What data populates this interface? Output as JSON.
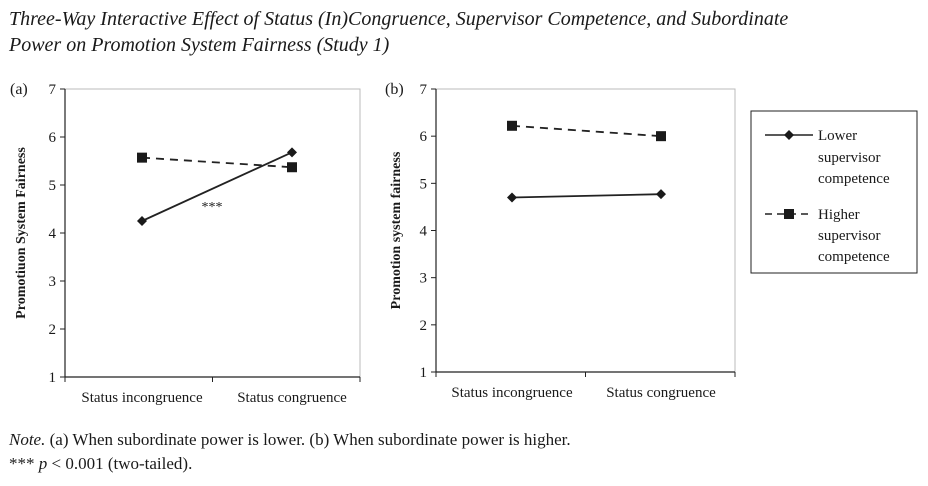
{
  "figure": {
    "title_line1": "Three-Way Interactive Effect of Status (In)Congruence, Supervisor Competence, and Subordinate",
    "title_line2": "Power on Promotion System Fairness (Study 1)",
    "note_label": "Note.",
    "note_text": " (a) When subordinate power is lower. (b) When subordinate power is higher.",
    "sig_stars": "***",
    "sig_p": "p",
    "sig_text": " < 0.001 (two-tailed)."
  },
  "legend": {
    "lower": [
      "Lower",
      "supervisor",
      "competence"
    ],
    "higher": [
      "Higher",
      "supervisor",
      "competence"
    ]
  },
  "chart_data": [
    {
      "type": "line",
      "panel_label": "(a)",
      "title": "",
      "xlabel": "",
      "ylabel": "Promotiuon System Fairness",
      "categories": [
        "Status incongruence",
        "Status congruence"
      ],
      "ylim": [
        1,
        7
      ],
      "yticks": [
        1,
        2,
        3,
        4,
        5,
        6,
        7
      ],
      "annotation": "***",
      "series": [
        {
          "name": "Lower supervisor competence",
          "style": "solid",
          "marker": "diamond",
          "values": [
            4.25,
            5.68
          ]
        },
        {
          "name": "Higher supervisor competence",
          "style": "dashed",
          "marker": "square",
          "values": [
            5.57,
            5.37
          ]
        }
      ]
    },
    {
      "type": "line",
      "panel_label": "(b)",
      "title": "",
      "xlabel": "",
      "ylabel": "Promotion system fairness",
      "categories": [
        "Status incongruence",
        "Status congruence"
      ],
      "ylim": [
        1,
        7
      ],
      "yticks": [
        1,
        2,
        3,
        4,
        5,
        6,
        7
      ],
      "annotation": "",
      "series": [
        {
          "name": "Lower supervisor competence",
          "style": "solid",
          "marker": "diamond",
          "values": [
            4.7,
            4.77
          ]
        },
        {
          "name": "Higher supervisor competence",
          "style": "dashed",
          "marker": "square",
          "values": [
            6.22,
            6.0
          ]
        }
      ]
    }
  ]
}
